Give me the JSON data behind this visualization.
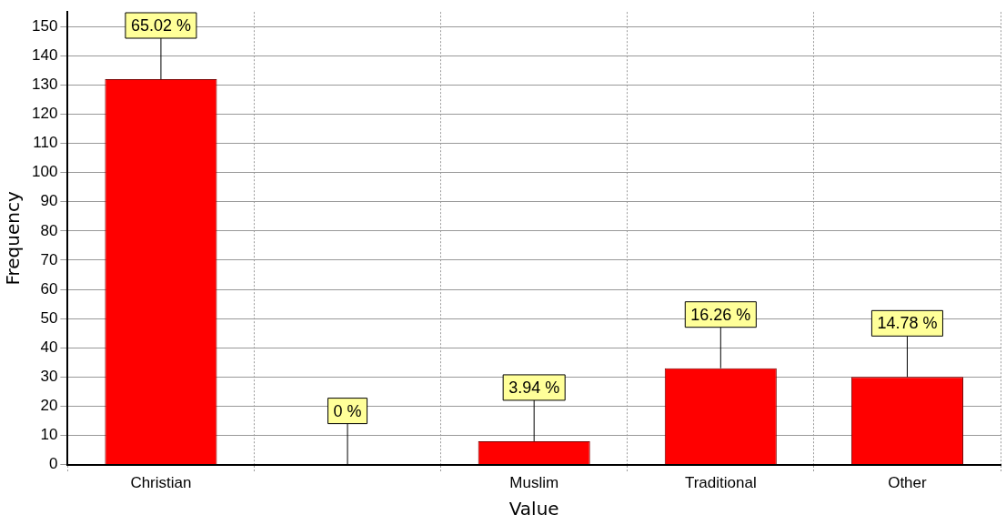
{
  "chart_data": {
    "type": "bar",
    "xlabel": "Value",
    "ylabel": "Frequency",
    "categories": [
      "Christian",
      null,
      "Muslim",
      "Traditional",
      "Other"
    ],
    "values": [
      132,
      0,
      8,
      33,
      30
    ],
    "annotations": [
      {
        "text": "65.02 %",
        "x": "Christian",
        "y": 132
      },
      {
        "text": "0 %",
        "y": 0
      },
      {
        "text": "3.94 %",
        "x": "Muslim",
        "y": 8
      },
      {
        "text": "16.26 %",
        "x": "Traditional",
        "y": 33
      },
      {
        "text": "14.78 %",
        "x": "Other",
        "y": 30
      }
    ],
    "color": "#ff0000",
    "ylim": [
      0,
      155
    ],
    "yticks": [
      0,
      10,
      20,
      30,
      40,
      50,
      60,
      70,
      80,
      90,
      100,
      110,
      120,
      130,
      140,
      150
    ],
    "grid": true
  }
}
